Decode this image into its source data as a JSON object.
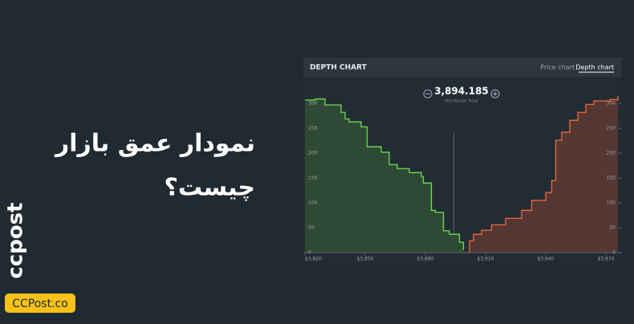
{
  "headline": [
    "نمودار عمق بازار",
    "چیست؟"
  ],
  "logo": "ccpost",
  "badge": "CCPost.co",
  "panel": {
    "title": "DEPTH CHART",
    "tabs": [
      "Price chart",
      "Depth chart"
    ]
  },
  "chart_data": {
    "type": "depth",
    "mid_price": {
      "value": 3894.185,
      "label": "3,894.185"
    },
    "mid_price_caption": "Mid Market Price",
    "xlim": [
      3820,
      3976
    ],
    "xticks": [
      {
        "value": 3820,
        "label": "$3,820"
      },
      {
        "value": 3850,
        "label": "$3,850"
      },
      {
        "value": 3880,
        "label": "$3,880"
      },
      {
        "value": 3910,
        "label": "$3,910"
      },
      {
        "value": 3940,
        "label": "$3,940"
      },
      {
        "value": 3970,
        "label": "$3,970"
      }
    ],
    "ylim": [
      0,
      320
    ],
    "yticks": [
      0,
      50,
      100,
      150,
      200,
      250,
      300
    ],
    "series": [
      {
        "color": "#6fe04f",
        "fill_color": "#2e4a35",
        "x": [
          3820,
          3825,
          3830,
          3838,
          3840,
          3842,
          3848,
          3851,
          3858,
          3862,
          3866,
          3872,
          3878,
          3879,
          3883,
          3885,
          3889,
          3892,
          3897,
          3899
        ],
        "values": [
          307,
          309,
          297,
          282,
          269,
          263,
          253,
          213,
          202,
          177,
          169,
          161,
          153,
          140,
          85,
          81,
          44,
          37,
          21,
          5
        ]
      },
      {
        "color": "#f26b3a",
        "fill_color": "#553733",
        "x": [
          3899,
          3902,
          3904,
          3908,
          3913,
          3920,
          3928,
          3933,
          3940,
          3943,
          3945,
          3948,
          3952,
          3956,
          3960,
          3964,
          3972,
          3976
        ],
        "values": [
          0,
          24,
          37,
          45,
          56,
          69,
          85,
          105,
          121,
          145,
          226,
          242,
          266,
          282,
          298,
          305,
          308,
          315
        ]
      }
    ]
  }
}
